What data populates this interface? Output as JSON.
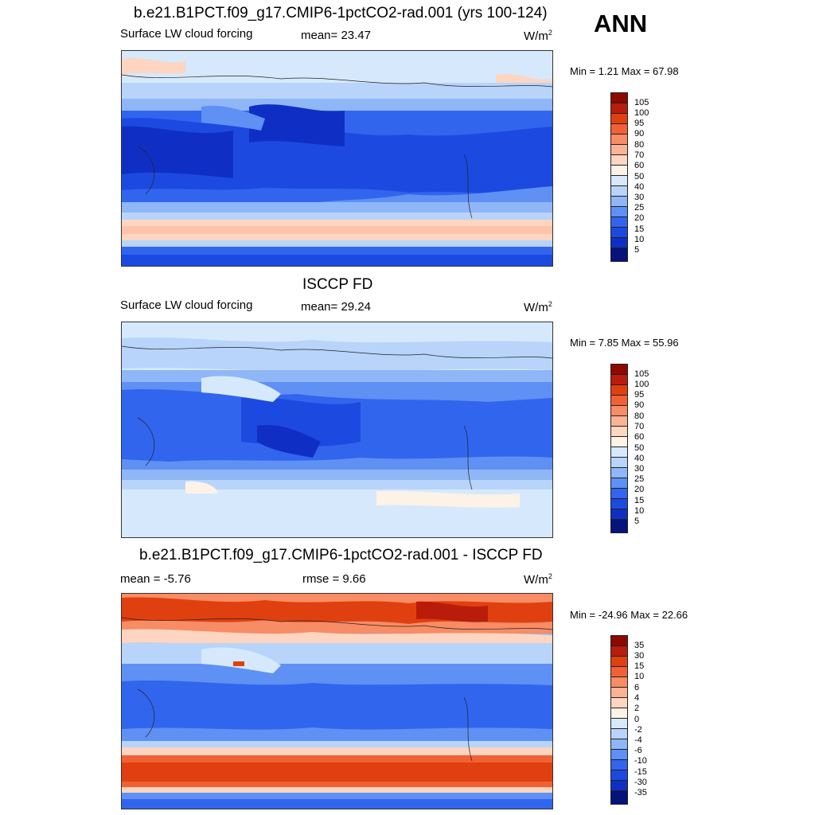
{
  "season": "ANN",
  "panels": [
    {
      "title": "b.e21.B1PCT.f09_g17.CMIP6-1pctCO2-rad.001 (yrs 100-124)",
      "left_label": "Surface LW cloud forcing",
      "center_label": "mean=  23.47",
      "units": "W/m",
      "units_sup": "2",
      "minmax": "Min =   1.21 Max =  67.98",
      "colorbar_labels": [
        "105",
        "100",
        "95",
        "90",
        "80",
        "70",
        "60",
        "50",
        "40",
        "30",
        "25",
        "20",
        "15",
        "10",
        "5"
      ]
    },
    {
      "title": "ISCCP FD",
      "left_label": "Surface LW cloud forcing",
      "center_label": "mean=  29.24",
      "units": "W/m",
      "units_sup": "2",
      "minmax": "Min =   7.85 Max =  55.96",
      "colorbar_labels": [
        "105",
        "100",
        "95",
        "90",
        "80",
        "70",
        "60",
        "50",
        "40",
        "30",
        "25",
        "20",
        "15",
        "10",
        "5"
      ]
    },
    {
      "title": "b.e21.B1PCT.f09_g17.CMIP6-1pctCO2-rad.001 - ISCCP FD",
      "left_label": "mean =  -5.76",
      "center_label": "rmse =   9.66",
      "units": "W/m",
      "units_sup": "2",
      "minmax": "Min = -24.96 Max =  22.66",
      "colorbar_labels": [
        "35",
        "30",
        "15",
        "10",
        "6",
        "4",
        "2",
        "0",
        "-2",
        "-4",
        "-6",
        "-10",
        "-15",
        "-30",
        "-35"
      ]
    }
  ],
  "colors": {
    "abs_scale": [
      "#8c0a00",
      "#b91c0b",
      "#e0400f",
      "#f26036",
      "#f78c65",
      "#fbb295",
      "#fdd5c1",
      "#fdf2e6",
      "#d6e9fc",
      "#b8d4fa",
      "#8fb6f7",
      "#5f90f3",
      "#3265ee",
      "#1c4ae0",
      "#0f2fc4",
      "#0a1f9c",
      "#05137a"
    ],
    "diff_scale": [
      "#8c0a00",
      "#b91c0b",
      "#e0400f",
      "#f26036",
      "#f78c65",
      "#fbb295",
      "#fdd5c1",
      "#fdf2e6",
      "#d6e9fc",
      "#b8d4fa",
      "#8fb6f7",
      "#5f90f3",
      "#3265ee",
      "#1c4ae0",
      "#0f2fc4",
      "#05137a"
    ]
  }
}
